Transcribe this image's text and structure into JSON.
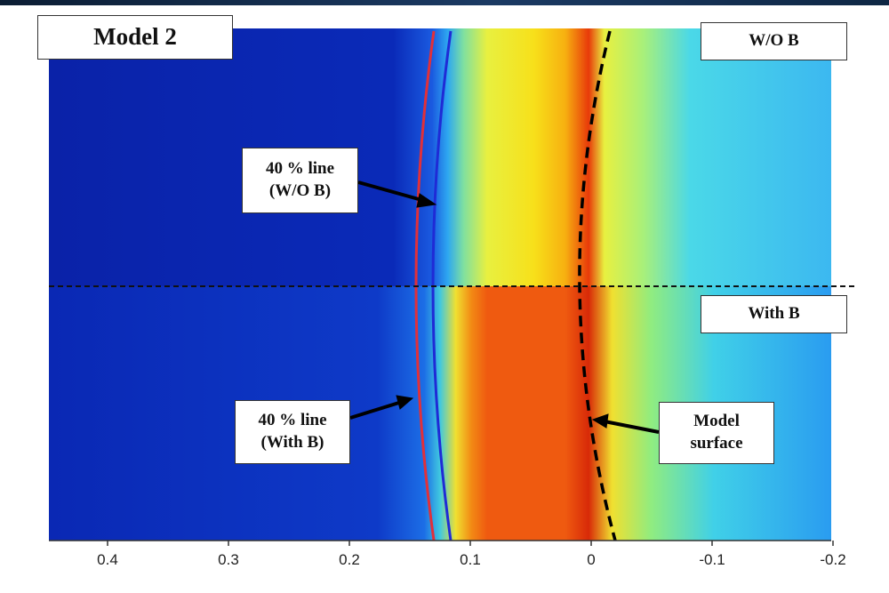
{
  "panel": {
    "title": "Model 2",
    "regions": {
      "top": "W/O B",
      "bottom": "With B"
    }
  },
  "annotations": {
    "line40_without_b": {
      "line1": "40 % line",
      "line2": "(W/O B)"
    },
    "line40_with_b": {
      "line1": "40 % line",
      "line2": "(With B)"
    },
    "model_surface": {
      "line1": "Model",
      "line2": "surface"
    }
  },
  "x_axis": {
    "ticks": [
      "0.4",
      "0.3",
      "0.2",
      "0.1",
      "0",
      "-0.1",
      "-0.2"
    ],
    "range": [
      0.45,
      -0.2
    ]
  },
  "legend_colors": {
    "line40_without_b": "#1f2bd6",
    "line40_with_b": "#e0303a",
    "model_surface": "#000000",
    "divider": "#111111"
  }
}
